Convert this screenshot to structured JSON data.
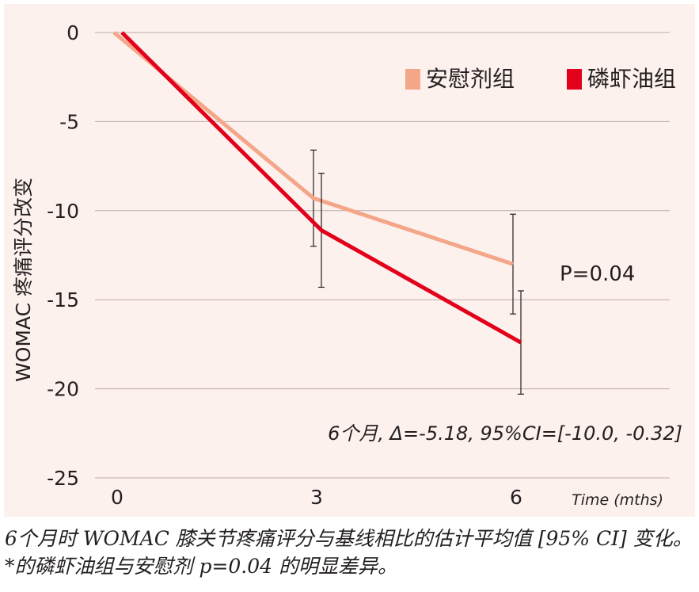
{
  "chart_data": {
    "type": "line",
    "x": [
      0,
      3,
      6
    ],
    "categories": [
      "0",
      "3",
      "6"
    ],
    "ylabel": "WOMAC 疼痛评分改变",
    "xlabel": "Time (mths)",
    "ylim": [
      -25,
      0
    ],
    "yticks": [
      "0",
      "-5",
      "-10",
      "-15",
      "-20",
      "-25"
    ],
    "grid": "horizontal",
    "legend_position": "top-right",
    "series": [
      {
        "name": "安慰剂组",
        "color": "#f4a688",
        "values": [
          0,
          -9.3,
          -13.0
        ],
        "error": [
          0,
          2.7,
          2.8
        ]
      },
      {
        "name": "磷虾油组",
        "color": "#e2001a",
        "values": [
          0,
          -11.1,
          -17.4
        ],
        "error": [
          0,
          3.2,
          2.9
        ]
      }
    ],
    "annotations": {
      "p_value": "P=0.04",
      "stat": "6个月, Δ=-5.18, 95%CI=[-10.0, -0.32]"
    }
  },
  "caption": "6个月时 WOMAC 膝关节疼痛评分与基线相比的估计平均值 [95% CI] 变化。*的磷虾油组与安慰剂 p=0.04 的明显差异。"
}
